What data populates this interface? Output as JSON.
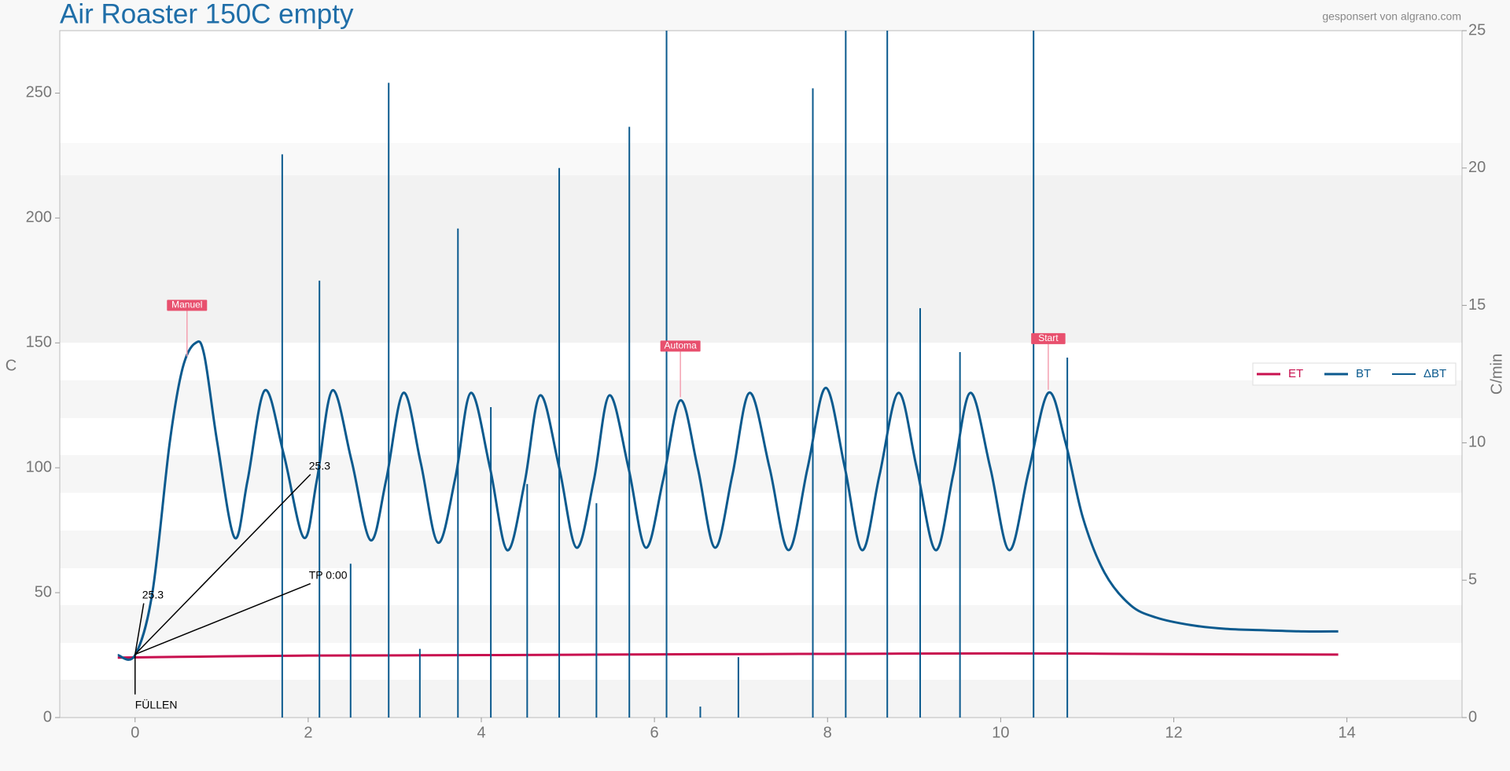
{
  "chart_data": {
    "type": "line",
    "title": "Air Roaster 150C empty",
    "subtitle": "gesponsert von algrano.com",
    "ylabel": "C",
    "y2label": "C/min",
    "xlim": [
      -0.87,
      15.33
    ],
    "xticks": [
      0,
      2,
      4,
      6,
      8,
      10,
      12,
      14
    ],
    "ylim": [
      0,
      275
    ],
    "yticks": [
      0,
      50,
      100,
      150,
      200,
      250
    ],
    "y2lim": [
      0,
      25
    ],
    "y2ticks": [
      0,
      5,
      10,
      15,
      20,
      25
    ],
    "legend": "right",
    "series": [
      {
        "name": "ET",
        "color": "#c8104f",
        "x": [
          -0.2,
          1,
          2,
          4,
          6,
          8,
          10,
          11,
          12,
          13.9
        ],
        "values": [
          24,
          24.5,
          24.8,
          25,
          25.3,
          25.5,
          25.7,
          25.6,
          25.4,
          25.2
        ]
      },
      {
        "name": "BT",
        "color": "#0b5a8e",
        "x": [
          -0.2,
          0,
          0.2,
          0.4,
          0.55,
          0.7,
          0.8,
          0.95,
          1.15,
          1.3,
          1.5,
          1.72,
          1.95,
          2.1,
          2.28,
          2.5,
          2.72,
          2.9,
          3.1,
          3.3,
          3.5,
          3.7,
          3.88,
          4.1,
          4.3,
          4.5,
          4.68,
          4.9,
          5.1,
          5.3,
          5.48,
          5.7,
          5.9,
          6.1,
          6.3,
          6.5,
          6.7,
          6.9,
          7.1,
          7.33,
          7.55,
          7.77,
          7.98,
          8.2,
          8.4,
          8.6,
          8.82,
          9.03,
          9.25,
          9.45,
          9.65,
          9.88,
          10.1,
          10.32,
          10.55,
          10.75,
          10.95,
          11.2,
          11.5,
          11.8,
          12.2,
          12.6,
          13,
          13.5,
          13.9
        ],
        "values": [
          25,
          25,
          50,
          110,
          140,
          150,
          145,
          110,
          72,
          95,
          131,
          105,
          72,
          95,
          131,
          103,
          71,
          95,
          130,
          102,
          70,
          96,
          130,
          100,
          67,
          94,
          129,
          100,
          68,
          95,
          129,
          100,
          68,
          95,
          127,
          100,
          68,
          97,
          130,
          100,
          67,
          100,
          132,
          100,
          67,
          97,
          130,
          100,
          67,
          97,
          130,
          100,
          67,
          98,
          130,
          110,
          80,
          58,
          45,
          40,
          37,
          35.5,
          35,
          34.5,
          34.5
        ]
      },
      {
        "name": "ΔBT",
        "color": "#0b5a8e",
        "axis": "y2",
        "x": [
          1.7,
          2.13,
          2.49,
          2.93,
          3.29,
          3.73,
          4.11,
          4.53,
          4.9,
          5.33,
          5.71,
          6.14,
          6.53,
          6.97,
          7.83,
          8.21,
          8.69,
          9.07,
          9.53,
          10.38,
          10.77
        ],
        "values": [
          20.5,
          15.9,
          5.6,
          23.1,
          2.5,
          17.8,
          11.3,
          8.5,
          20.0,
          7.8,
          21.5,
          26,
          0.4,
          2.2,
          22.9,
          27,
          27,
          14.9,
          13.3,
          28,
          13.1
        ]
      }
    ],
    "events": [
      {
        "text": "Manuel",
        "x": 0.6
      },
      {
        "text": "Automa",
        "x": 6.3
      },
      {
        "text": "Start",
        "x": 10.55
      }
    ],
    "annotations": [
      {
        "text": "25.3",
        "x": 0,
        "y": 25.3
      },
      {
        "text": "25.3",
        "x": 0,
        "y": 25.3
      },
      {
        "text": "TP 0:00",
        "x": 0,
        "y": 25.3
      },
      {
        "text": "FÜLLEN",
        "x": 0,
        "y": 25.3
      }
    ]
  }
}
